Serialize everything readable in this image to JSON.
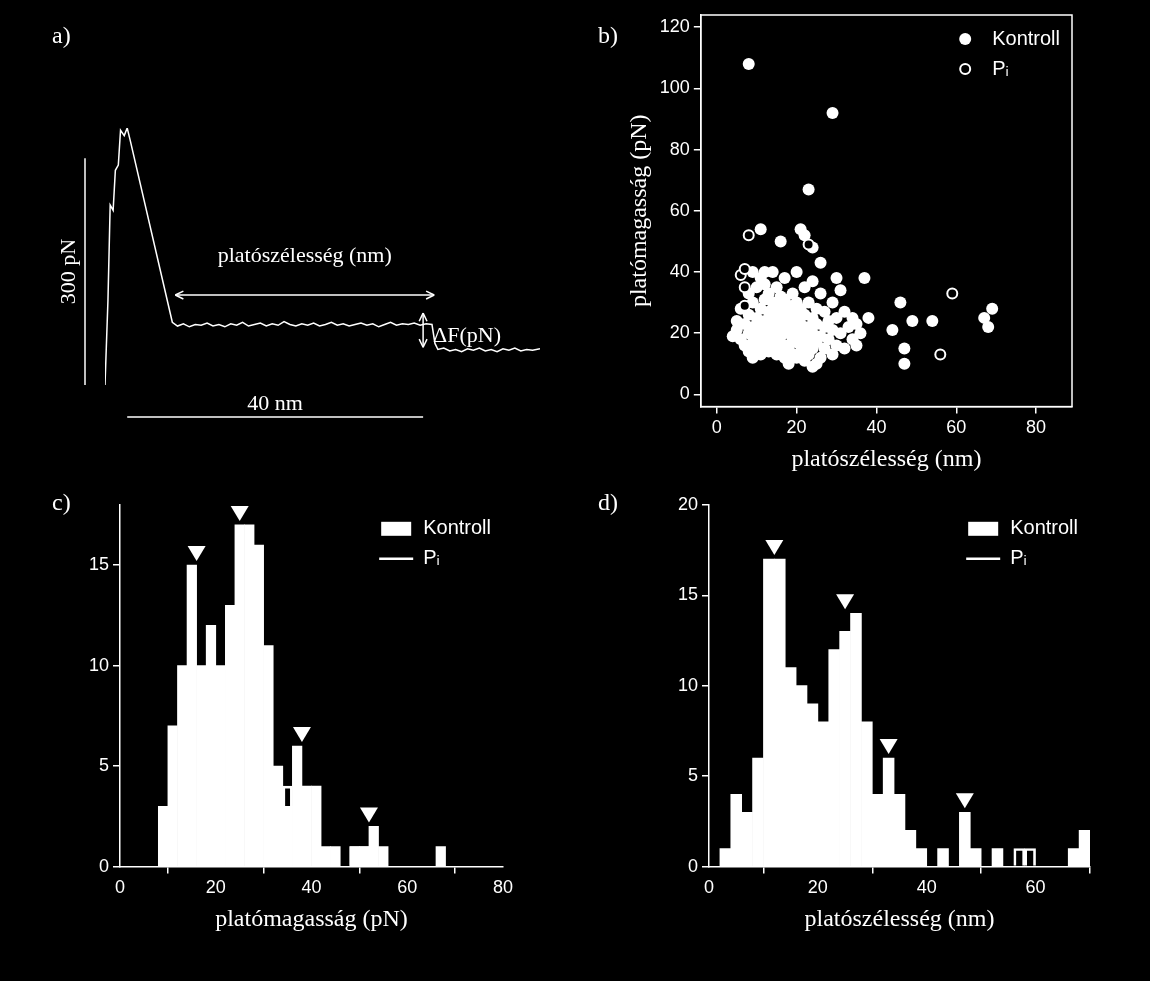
{
  "chart_data": [
    {
      "panel": "a)",
      "type": "line",
      "tick_labels": false,
      "grid": false,
      "color": "#ffffff",
      "x": [
        -3.0,
        -2.6,
        -2.3,
        -1.9,
        -1.6,
        -1.2,
        -0.9,
        -0.4,
        0,
        0.4,
        6.1,
        6.8,
        7.6,
        8.4,
        9.2,
        10.0,
        10.8,
        11.6,
        12.4,
        13.2,
        14.0,
        14.8,
        15.6,
        16.4,
        17.2,
        18.0,
        18.8,
        19.6,
        20.4,
        21.2,
        22.0,
        22.8,
        23.6,
        24.4,
        25.2,
        26.0,
        26.8,
        27.6,
        28.4,
        29.2,
        30.0,
        30.8,
        31.6,
        32.4,
        33.2,
        34.0,
        34.8,
        35.6,
        36.4,
        37.2,
        38.0,
        38.8,
        39.6,
        40.4,
        41.2,
        41.6,
        42.0,
        42.8,
        43.6,
        44.4,
        45.2,
        46.0,
        46.8,
        47.6,
        48.4,
        49.2,
        50.0,
        50.8,
        51.6,
        52.4,
        53.2,
        54.0,
        54.8,
        55.8
      ],
      "values": [
        0,
        112,
        238,
        231,
        284,
        291,
        337,
        330,
        340,
        324,
        83,
        78,
        81,
        77,
        80,
        79,
        82,
        78,
        80,
        77,
        81,
        79,
        83,
        78,
        80,
        82,
        78,
        81,
        79,
        84,
        80,
        78,
        81,
        79,
        82,
        78,
        80,
        83,
        79,
        81,
        78,
        80,
        82,
        79,
        81,
        77,
        80,
        83,
        79,
        81,
        80,
        82,
        79,
        81,
        80,
        55,
        47,
        49,
        45,
        47,
        44,
        48,
        46,
        49,
        45,
        47,
        44,
        48,
        46,
        49,
        45,
        47,
        46,
        48
      ],
      "scale_bars": [
        {
          "axis": "y",
          "value": 300,
          "label": "300 pN"
        },
        {
          "axis": "x",
          "value": 40,
          "label": "40 nm"
        }
      ],
      "annotations": [
        {
          "text": "platószélesség (nm)",
          "x": [
            6.5,
            41.5
          ],
          "y": 119
        },
        {
          "text": "ΔF(pN)",
          "x": 40,
          "y": [
            50,
            95
          ]
        }
      ]
    },
    {
      "panel": "b)",
      "type": "scatter",
      "xlabel": "platószélesség (nm)",
      "ylabel": "platómagasság (pN)",
      "xlim": [
        -4,
        89
      ],
      "xticks": [
        0,
        20,
        40,
        60,
        80
      ],
      "ylim": [
        -4,
        124
      ],
      "yticks": [
        0,
        20,
        40,
        60,
        80,
        100,
        120
      ],
      "grid": false,
      "legend": "upper right",
      "series": [
        {
          "name": "Kontroll",
          "color": "#ffffff",
          "marker": "circle",
          "x": [
            8,
            29,
            23,
            21,
            11,
            22,
            16,
            24,
            26,
            9,
            12,
            20,
            30,
            37,
            44,
            46,
            47,
            47,
            49,
            54,
            67,
            68,
            69,
            4,
            5,
            5,
            6,
            6,
            7,
            7,
            8,
            8,
            8,
            8,
            9,
            9,
            9,
            9,
            10,
            10,
            10,
            10,
            11,
            11,
            11,
            11,
            11,
            12,
            12,
            12,
            12,
            12,
            13,
            13,
            13,
            13,
            13,
            14,
            14,
            14,
            14,
            14,
            14,
            15,
            15,
            15,
            15,
            15,
            15,
            16,
            16,
            16,
            16,
            16,
            17,
            17,
            17,
            17,
            17,
            17,
            18,
            18,
            18,
            18,
            18,
            19,
            19,
            19,
            19,
            19,
            20,
            20,
            20,
            20,
            20,
            21,
            21,
            21,
            21,
            22,
            22,
            22,
            22,
            22,
            23,
            23,
            23,
            23,
            24,
            24,
            24,
            24,
            24,
            25,
            25,
            25,
            25,
            26,
            26,
            26,
            27,
            27,
            27,
            28,
            28,
            29,
            29,
            29,
            30,
            30,
            31,
            31,
            32,
            32,
            33,
            34,
            34,
            35,
            35,
            36,
            38
          ],
          "values": [
            108,
            92,
            67,
            54,
            54,
            52,
            50,
            48,
            43,
            40,
            40,
            40,
            38,
            38,
            21,
            30,
            15,
            10,
            24,
            24,
            25,
            22,
            28,
            19,
            21,
            24,
            18,
            28,
            16,
            23,
            14,
            20,
            26,
            33,
            12,
            17,
            22,
            30,
            15,
            19,
            25,
            35,
            13,
            18,
            22,
            28,
            38,
            16,
            20,
            24,
            31,
            36,
            14,
            19,
            23,
            27,
            33,
            15,
            18,
            21,
            26,
            30,
            40,
            13,
            17,
            22,
            25,
            29,
            35,
            14,
            19,
            24,
            28,
            32,
            12,
            16,
            21,
            26,
            31,
            38,
            10,
            15,
            20,
            24,
            29,
            13,
            18,
            22,
            27,
            33,
            12,
            17,
            21,
            25,
            30,
            14,
            19,
            23,
            28,
            11,
            16,
            20,
            26,
            35,
            13,
            18,
            22,
            30,
            9,
            15,
            20,
            25,
            37,
            10,
            17,
            23,
            28,
            12,
            19,
            33,
            15,
            22,
            27,
            18,
            24,
            13,
            21,
            30,
            16,
            25,
            20,
            34,
            15,
            27,
            22,
            18,
            25,
            16,
            23,
            20,
            25
          ]
        },
        {
          "name": "Pᵢ",
          "color": "#ffffff",
          "marker": "circle_open",
          "x": [
            8,
            6,
            7,
            7,
            7,
            23,
            59,
            56
          ],
          "values": [
            52,
            39,
            41,
            35,
            29,
            49,
            33,
            13
          ]
        }
      ]
    },
    {
      "panel": "c)",
      "type": "histogram",
      "xlabel": "platómagasság (pN)",
      "xlim": [
        0,
        80
      ],
      "xticks": [
        0,
        20,
        40,
        60,
        80
      ],
      "ylim": [
        0,
        18
      ],
      "yticks": [
        0,
        5,
        10,
        15
      ],
      "grid": false,
      "legend": "upper right",
      "bins": [
        0,
        2,
        4,
        6,
        8,
        10,
        12,
        14,
        16,
        18,
        20,
        22,
        24,
        26,
        28,
        30,
        32,
        34,
        36,
        38,
        40,
        42,
        44,
        46,
        48,
        50,
        52,
        54,
        56,
        58,
        60,
        62,
        64,
        66,
        68,
        70,
        72,
        74,
        76,
        78,
        80
      ],
      "series": [
        {
          "name": "Kontroll",
          "color": "#ffffff",
          "marker": "filled",
          "values": [
            0,
            0,
            0,
            0,
            3,
            7,
            10,
            15,
            10,
            12,
            10,
            13,
            17,
            17,
            16,
            11,
            5,
            3,
            6,
            4,
            4,
            1,
            1,
            0,
            1,
            1,
            2,
            1,
            0,
            0,
            0,
            0,
            0,
            1,
            0,
            0,
            0,
            0,
            0,
            0
          ]
        },
        {
          "name": "Pᵢ",
          "color": "#ffffff",
          "marker": "outline",
          "values": [
            0,
            0,
            0,
            0,
            0,
            0,
            0,
            0,
            0,
            0,
            0,
            0,
            0,
            0,
            0,
            0,
            0,
            4,
            0,
            0,
            0,
            0,
            0,
            0,
            1,
            1,
            0,
            0,
            0,
            0,
            0,
            0,
            0,
            0,
            0,
            0,
            0,
            0,
            0,
            0
          ]
        }
      ],
      "peaks": [
        16,
        25,
        38,
        52
      ]
    },
    {
      "panel": "d)",
      "type": "histogram",
      "xlabel": "platószélesség (nm)",
      "xlim": [
        0,
        70
      ],
      "xticks": [
        0,
        20,
        40,
        60
      ],
      "ylim": [
        0,
        20
      ],
      "yticks": [
        0,
        5,
        10,
        15,
        20
      ],
      "grid": false,
      "legend": "upper right",
      "bins": [
        0,
        2,
        4,
        6,
        8,
        10,
        12,
        14,
        16,
        18,
        20,
        22,
        24,
        26,
        28,
        30,
        32,
        34,
        36,
        38,
        40,
        42,
        44,
        46,
        48,
        50,
        52,
        54,
        56,
        58,
        60,
        62,
        64,
        66,
        68,
        70
      ],
      "series": [
        {
          "name": "Kontroll",
          "color": "#ffffff",
          "marker": "filled",
          "values": [
            0,
            1,
            4,
            3,
            6,
            17,
            17,
            11,
            10,
            9,
            8,
            12,
            13,
            14,
            8,
            4,
            6,
            4,
            2,
            1,
            0,
            1,
            0,
            3,
            1,
            0,
            1,
            0,
            0,
            0,
            0,
            0,
            0,
            1,
            2
          ]
        },
        {
          "name": "Pᵢ",
          "color": "#ffffff",
          "marker": "outline",
          "values": [
            0,
            0,
            0,
            0,
            0,
            0,
            0,
            0,
            0,
            0,
            0,
            0,
            0,
            0,
            0,
            0,
            0,
            0,
            0,
            0,
            0,
            0,
            0,
            0,
            0,
            0,
            0,
            0,
            1,
            1,
            0,
            0,
            0,
            0,
            0
          ]
        }
      ],
      "peaks": [
        12,
        25,
        33,
        47
      ]
    }
  ]
}
